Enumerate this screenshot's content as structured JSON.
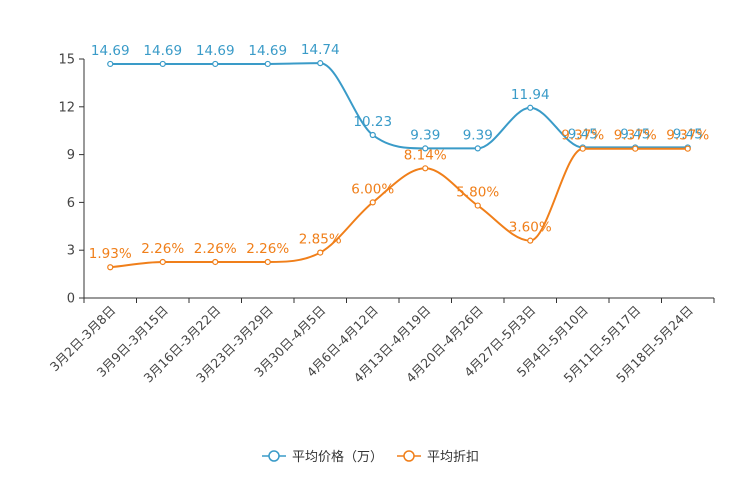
{
  "chart_data": {
    "type": "line",
    "categories": [
      "3月2日-3月8日",
      "3月9日-3月15日",
      "3月16日-3月22日",
      "3月23日-3月29日",
      "3月30日-4月5日",
      "4月6日-4月12日",
      "4月13日-4月19日",
      "4月20日-4月26日",
      "4月27日-5月3日",
      "5月4日-5月10日",
      "5月11日-5月17日",
      "5月18日-5月24日"
    ],
    "ylim": [
      0,
      15
    ],
    "yticks": [
      "0",
      "3",
      "6",
      "9",
      "12",
      "15"
    ],
    "series": [
      {
        "name": "平均价格（万）",
        "color": "#3a9bc8",
        "values": [
          14.69,
          14.69,
          14.69,
          14.69,
          14.74,
          10.23,
          9.39,
          9.39,
          11.94,
          9.45,
          9.45,
          9.45
        ],
        "labels": [
          "14.69",
          "14.69",
          "14.69",
          "14.69",
          "14.74",
          "10.23",
          "9.39",
          "9.39",
          "11.94",
          "9.45",
          "9.45",
          "9.45"
        ]
      },
      {
        "name": "平均折扣",
        "color": "#f07f1a",
        "values": [
          1.93,
          2.26,
          2.26,
          2.26,
          2.85,
          6.0,
          8.14,
          5.8,
          3.6,
          9.37,
          9.37,
          9.37
        ],
        "labels": [
          "1.93%",
          "2.26%",
          "2.26%",
          "2.26%",
          "2.85%",
          "6.00%",
          "8.14%",
          "5.80%",
          "3.60%",
          "9.37%",
          "9.37%",
          "9.37%"
        ]
      }
    ],
    "legend": {
      "position": "bottom-center"
    }
  }
}
